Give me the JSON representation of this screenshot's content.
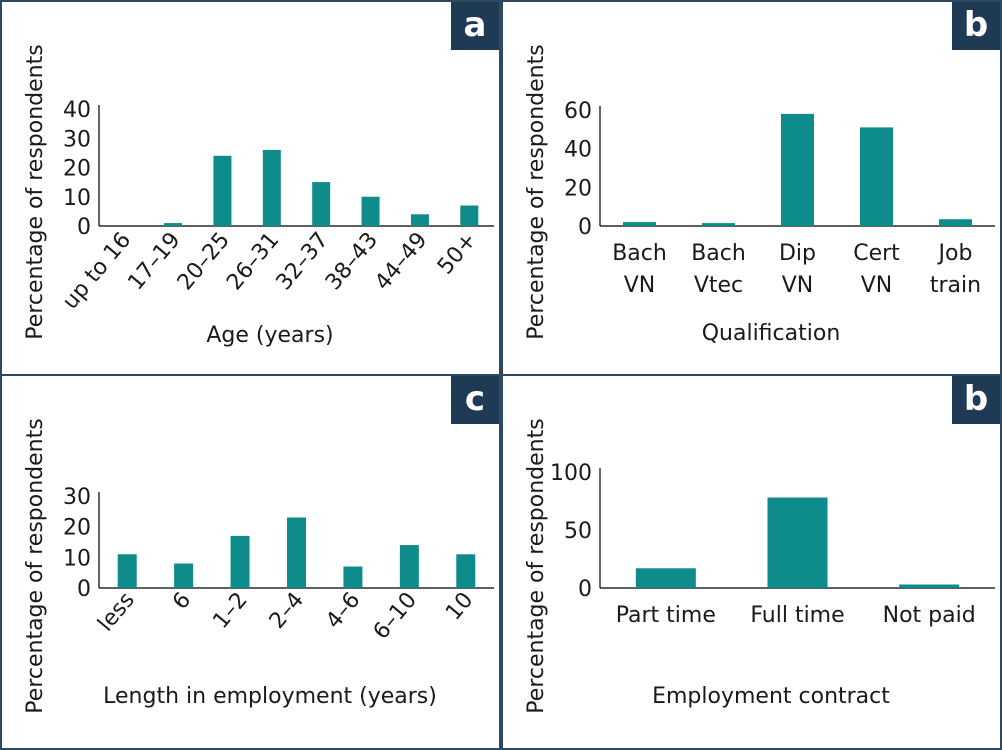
{
  "colors": {
    "bar": "#0e8b8b",
    "axis": "#000000",
    "border": "#2e4a63",
    "badge": "#1f3a55"
  },
  "chart_data": [
    {
      "type": "bar",
      "panel_label": "a",
      "categories": [
        "up to 16",
        "17–19",
        "20–25",
        "26–31",
        "32–37",
        "38–43",
        "44–49",
        "50+"
      ],
      "values": [
        0,
        1,
        24,
        26,
        15,
        10,
        4,
        7
      ],
      "ylabel": "Percentage of respondents",
      "xlabel": "Age (years)",
      "yticks": [
        0,
        10,
        20,
        30,
        40
      ],
      "ylim": [
        0,
        40
      ],
      "rotated_labels": true
    },
    {
      "type": "bar",
      "panel_label": "b",
      "categories": [
        [
          "Bach",
          "VN"
        ],
        [
          "Bach",
          "Vtec"
        ],
        [
          "Dip",
          "VN"
        ],
        [
          "Cert",
          "VN"
        ],
        [
          "Job",
          "train"
        ]
      ],
      "values": [
        2,
        1.5,
        58,
        51,
        3.5
      ],
      "ylabel": "Percentage of respondents",
      "xlabel": "Qualification",
      "yticks": [
        0,
        20,
        40,
        60
      ],
      "ylim": [
        0,
        60
      ],
      "rotated_labels": false
    },
    {
      "type": "bar",
      "panel_label": "c",
      "categories": [
        "less",
        "6",
        "1–2",
        "2–4",
        "4–6",
        "6–10",
        "10"
      ],
      "values": [
        11,
        8,
        17,
        23,
        7,
        14,
        11
      ],
      "ylabel": "Percentage of respondents",
      "xlabel": "Length in employment (years)",
      "yticks": [
        0,
        10,
        20,
        30
      ],
      "ylim": [
        0,
        30
      ],
      "rotated_labels": true
    },
    {
      "type": "bar",
      "panel_label": "b",
      "categories": [
        "Part time",
        "Full time",
        "Not paid"
      ],
      "values": [
        17,
        78,
        3
      ],
      "ylabel": "Percentage of respondents",
      "xlabel": "Employment contract",
      "yticks": [
        0,
        50,
        100
      ],
      "ylim": [
        0,
        100
      ],
      "rotated_labels": false
    }
  ]
}
